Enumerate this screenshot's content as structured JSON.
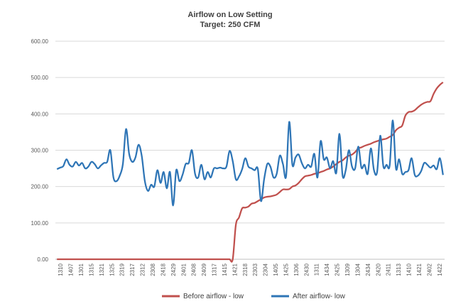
{
  "chart_data": {
    "type": "line",
    "title": "Airflow on Low Setting",
    "subtitle": "Target: 250 CFM",
    "ylim": [
      0,
      600
    ],
    "yticks": [
      "0.00",
      "100.00",
      "200.00",
      "300.00",
      "400.00",
      "500.00",
      "600.00"
    ],
    "grid": true,
    "legend_position": "bottom",
    "xtick_labels": [
      "1310",
      "1407",
      "1301",
      "1315",
      "1321",
      "1325",
      "2319",
      "2317",
      "2312",
      "2308",
      "2418",
      "2429",
      "2401",
      "2408",
      "2409",
      "1317",
      "1415",
      "1421",
      "2318",
      "2303",
      "2304",
      "1405",
      "1425",
      "1306",
      "2430",
      "1311",
      "1434",
      "2425",
      "1309",
      "1304",
      "2434",
      "2420",
      "2411",
      "1313",
      "1410",
      "1421",
      "2402",
      "1422"
    ],
    "series": [
      {
        "name": "Before airflow - low",
        "color": "#C0504D",
        "values": [
          0,
          0,
          0,
          0,
          0,
          0,
          0,
          0,
          0,
          0,
          0,
          0,
          0,
          0,
          0,
          0,
          0,
          0,
          0,
          0,
          0,
          0,
          0,
          0,
          0,
          0,
          0,
          0,
          0,
          0,
          0,
          0,
          0,
          0,
          0,
          0,
          0,
          0,
          0,
          0,
          0,
          0,
          0,
          0,
          0,
          0,
          0,
          0,
          0,
          0,
          0,
          0,
          0,
          0,
          0,
          0,
          0,
          95,
          115,
          140,
          142,
          145,
          153,
          155,
          160,
          165,
          170,
          172,
          173,
          175,
          178,
          185,
          192,
          192,
          193,
          200,
          203,
          210,
          220,
          228,
          230,
          232,
          235,
          237,
          240,
          243,
          247,
          250,
          255,
          262,
          268,
          272,
          280,
          285,
          288,
          295,
          305,
          308,
          312,
          315,
          318,
          322,
          325,
          328,
          330,
          332,
          337,
          342,
          355,
          362,
          368,
          395,
          405,
          406,
          410,
          418,
          425,
          430,
          433,
          435,
          455,
          470,
          480,
          487
        ]
      },
      {
        "name": "After airflow- low",
        "color": "#2E75B6",
        "values": [
          248,
          252,
          256,
          275,
          260,
          255,
          268,
          258,
          265,
          250,
          255,
          268,
          262,
          250,
          258,
          265,
          268,
          300,
          225,
          215,
          230,
          262,
          358,
          290,
          268,
          280,
          315,
          285,
          215,
          188,
          205,
          200,
          245,
          210,
          240,
          195,
          240,
          148,
          245,
          215,
          232,
          262,
          265,
          300,
          235,
          225,
          260,
          220,
          240,
          225,
          250,
          250,
          252,
          250,
          255,
          298,
          270,
          220,
          228,
          248,
          278,
          255,
          250,
          245,
          248,
          160,
          220,
          262,
          255,
          225,
          235,
          285,
          262,
          228,
          378,
          260,
          280,
          288,
          265,
          250,
          260,
          255,
          290,
          225,
          325,
          275,
          280,
          250,
          270,
          238,
          345,
          230,
          245,
          300,
          255,
          250,
          310,
          252,
          260,
          235,
          305,
          245,
          240,
          340,
          255,
          260,
          258,
          382,
          250,
          275,
          235,
          240,
          245,
          278,
          232,
          230,
          242,
          265,
          260,
          252,
          258,
          248,
          278,
          232
        ]
      }
    ]
  }
}
